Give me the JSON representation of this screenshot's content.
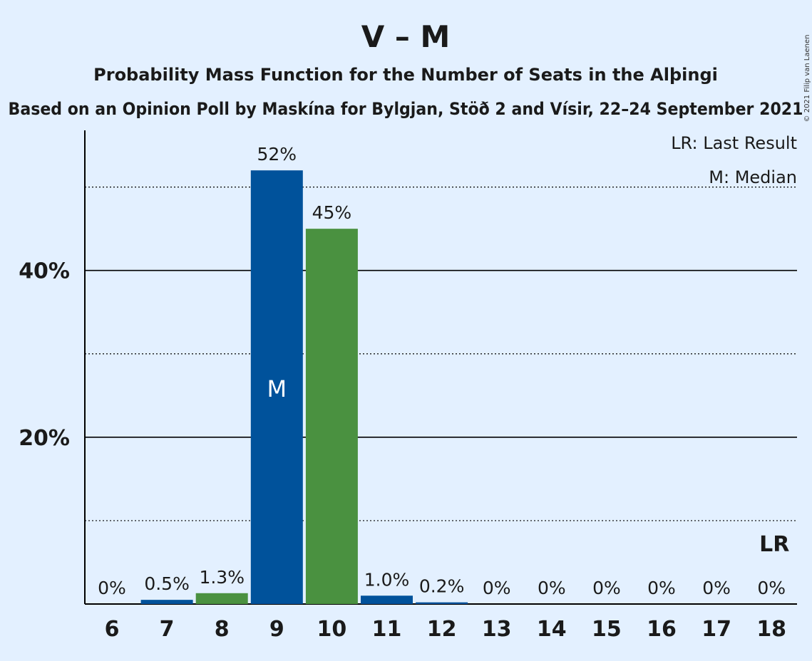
{
  "chart_data": {
    "type": "bar",
    "title": "V – M",
    "subtitle": "Probability Mass Function for the Number of Seats in the Alþingi",
    "source": "Based on an Opinion Poll by Maskína for Bylgjan, Stöð 2 and Vísir, 22–24 September 2021",
    "copyright": "© 2021 Filip van Laenen",
    "legend": {
      "last_result": "LR: Last Result",
      "median": "M: Median",
      "placement": "top-right"
    },
    "categories": [
      "6",
      "7",
      "8",
      "9",
      "10",
      "11",
      "12",
      "13",
      "14",
      "15",
      "16",
      "17",
      "18"
    ],
    "values": [
      0,
      0.5,
      1.3,
      52,
      45,
      1.0,
      0.2,
      0,
      0,
      0,
      0,
      0,
      0
    ],
    "labels": [
      "0%",
      "0.5%",
      "1.3%",
      "52%",
      "45%",
      "1.0%",
      "0.2%",
      "0%",
      "0%",
      "0%",
      "0%",
      "0%",
      "0%"
    ],
    "bar_colors": [
      "#00529B",
      "#00529B",
      "#4A9140",
      "#00529B",
      "#4A9140",
      "#00529B",
      "#00529B",
      "#00529B",
      "#00529B",
      "#00529B",
      "#00529B",
      "#00529B",
      "#00529B"
    ],
    "median_category": "9",
    "median_marker": "M",
    "last_result_category": "18",
    "last_result_marker": "LR",
    "ylim": [
      0,
      56.8
    ],
    "yticks_major": [
      20,
      40
    ],
    "ytick_labels": [
      "20%",
      "40%"
    ],
    "yticks_minor": [
      10,
      30,
      50
    ],
    "xlabel": "",
    "ylabel": ""
  }
}
